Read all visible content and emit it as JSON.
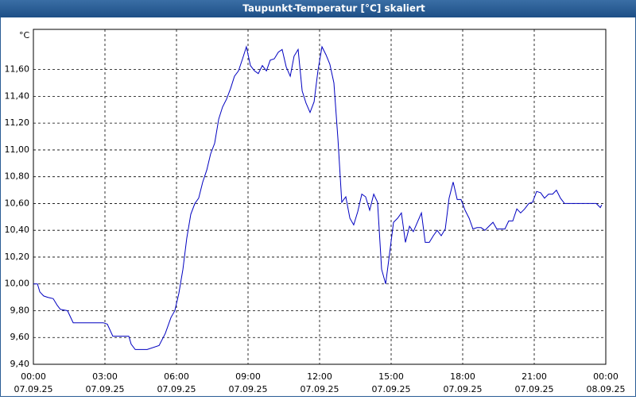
{
  "chart_data": {
    "type": "line",
    "title": "Taupunkt-Temperatur [°C] skaliert",
    "y_label": "°C",
    "color": "#0000c0",
    "grid": true,
    "xlim": [
      0,
      24
    ],
    "ylim": [
      9.4,
      11.9
    ],
    "xticks": [
      {
        "value": 0,
        "label": "00:00",
        "date": "07.09.25"
      },
      {
        "value": 3,
        "label": "03:00",
        "date": "07.09.25"
      },
      {
        "value": 6,
        "label": "06:00",
        "date": "07.09.25"
      },
      {
        "value": 9,
        "label": "09:00",
        "date": "07.09.25"
      },
      {
        "value": 12,
        "label": "12:00",
        "date": "07.09.25"
      },
      {
        "value": 15,
        "label": "15:00",
        "date": "07.09.25"
      },
      {
        "value": 18,
        "label": "18:00",
        "date": "07.09.25"
      },
      {
        "value": 21,
        "label": "21:00",
        "date": "07.09.25"
      },
      {
        "value": 24,
        "label": "00:00",
        "date": "08.09.25"
      }
    ],
    "yticks": [
      {
        "value": 9.4,
        "label": "9,40"
      },
      {
        "value": 9.6,
        "label": "9,60"
      },
      {
        "value": 9.8,
        "label": "9,80"
      },
      {
        "value": 10.0,
        "label": "10,00"
      },
      {
        "value": 10.2,
        "label": "10,20"
      },
      {
        "value": 10.4,
        "label": "10,40"
      },
      {
        "value": 10.6,
        "label": "10,60"
      },
      {
        "value": 10.8,
        "label": "10,80"
      },
      {
        "value": 11.0,
        "label": "11,00"
      },
      {
        "value": 11.2,
        "label": "11,20"
      },
      {
        "value": 11.4,
        "label": "11,40"
      },
      {
        "value": 11.6,
        "label": "11,60"
      }
    ],
    "x": [
      0,
      0.17,
      0.27,
      0.43,
      0.6,
      0.83,
      1.0,
      1.13,
      1.43,
      1.67,
      2.93,
      3.1,
      3.33,
      4.0,
      4.1,
      4.27,
      4.77,
      5.27,
      5.53,
      5.77,
      5.93,
      6.1,
      6.27,
      6.43,
      6.6,
      6.77,
      6.93,
      7.1,
      7.27,
      7.43,
      7.6,
      7.77,
      7.93,
      8.1,
      8.27,
      8.43,
      8.6,
      8.77,
      8.93,
      9.1,
      9.27,
      9.43,
      9.6,
      9.77,
      9.93,
      10.1,
      10.27,
      10.43,
      10.6,
      10.77,
      10.93,
      11.1,
      11.27,
      11.43,
      11.6,
      11.77,
      11.93,
      12.1,
      12.27,
      12.43,
      12.6,
      12.77,
      12.93,
      13.1,
      13.27,
      13.43,
      13.6,
      13.77,
      13.93,
      14.1,
      14.27,
      14.43,
      14.6,
      14.77,
      14.93,
      15.1,
      15.27,
      15.43,
      15.6,
      15.77,
      15.93,
      16.1,
      16.27,
      16.43,
      16.6,
      16.77,
      16.93,
      17.1,
      17.27,
      17.43,
      17.6,
      17.77,
      17.93,
      18.1,
      18.27,
      18.43,
      18.6,
      18.77,
      18.93,
      19.1,
      19.27,
      19.43,
      19.77,
      19.93,
      20.1,
      20.27,
      20.43,
      20.6,
      20.77,
      20.93,
      21.1,
      21.27,
      21.43,
      21.6,
      21.77,
      21.93,
      22.1,
      22.27,
      22.6,
      23.6,
      23.77,
      23.83
    ],
    "values": [
      10.0,
      10.0,
      9.94,
      9.91,
      9.9,
      9.89,
      9.84,
      9.81,
      9.8,
      9.71,
      9.71,
      9.7,
      9.61,
      9.61,
      9.55,
      9.51,
      9.51,
      9.54,
      9.63,
      9.75,
      9.8,
      9.93,
      10.11,
      10.34,
      10.52,
      10.6,
      10.64,
      10.76,
      10.85,
      10.97,
      11.05,
      11.23,
      11.32,
      11.38,
      11.46,
      11.55,
      11.59,
      11.68,
      11.77,
      11.63,
      11.59,
      11.57,
      11.63,
      11.59,
      11.67,
      11.68,
      11.73,
      11.75,
      11.62,
      11.55,
      11.7,
      11.75,
      11.44,
      11.35,
      11.28,
      11.36,
      11.59,
      11.77,
      11.71,
      11.64,
      11.5,
      11.08,
      10.61,
      10.65,
      10.49,
      10.44,
      10.54,
      10.67,
      10.65,
      10.55,
      10.67,
      10.61,
      10.11,
      10.0,
      10.22,
      10.46,
      10.49,
      10.53,
      10.31,
      10.43,
      10.39,
      10.46,
      10.53,
      10.31,
      10.31,
      10.36,
      10.4,
      10.36,
      10.41,
      10.64,
      10.76,
      10.63,
      10.63,
      10.55,
      10.49,
      10.41,
      10.42,
      10.42,
      10.4,
      10.43,
      10.46,
      10.41,
      10.41,
      10.47,
      10.47,
      10.56,
      10.53,
      10.56,
      10.6,
      10.61,
      10.69,
      10.68,
      10.64,
      10.67,
      10.67,
      10.7,
      10.64,
      10.6,
      10.6,
      10.6,
      10.57,
      10.59
    ]
  }
}
